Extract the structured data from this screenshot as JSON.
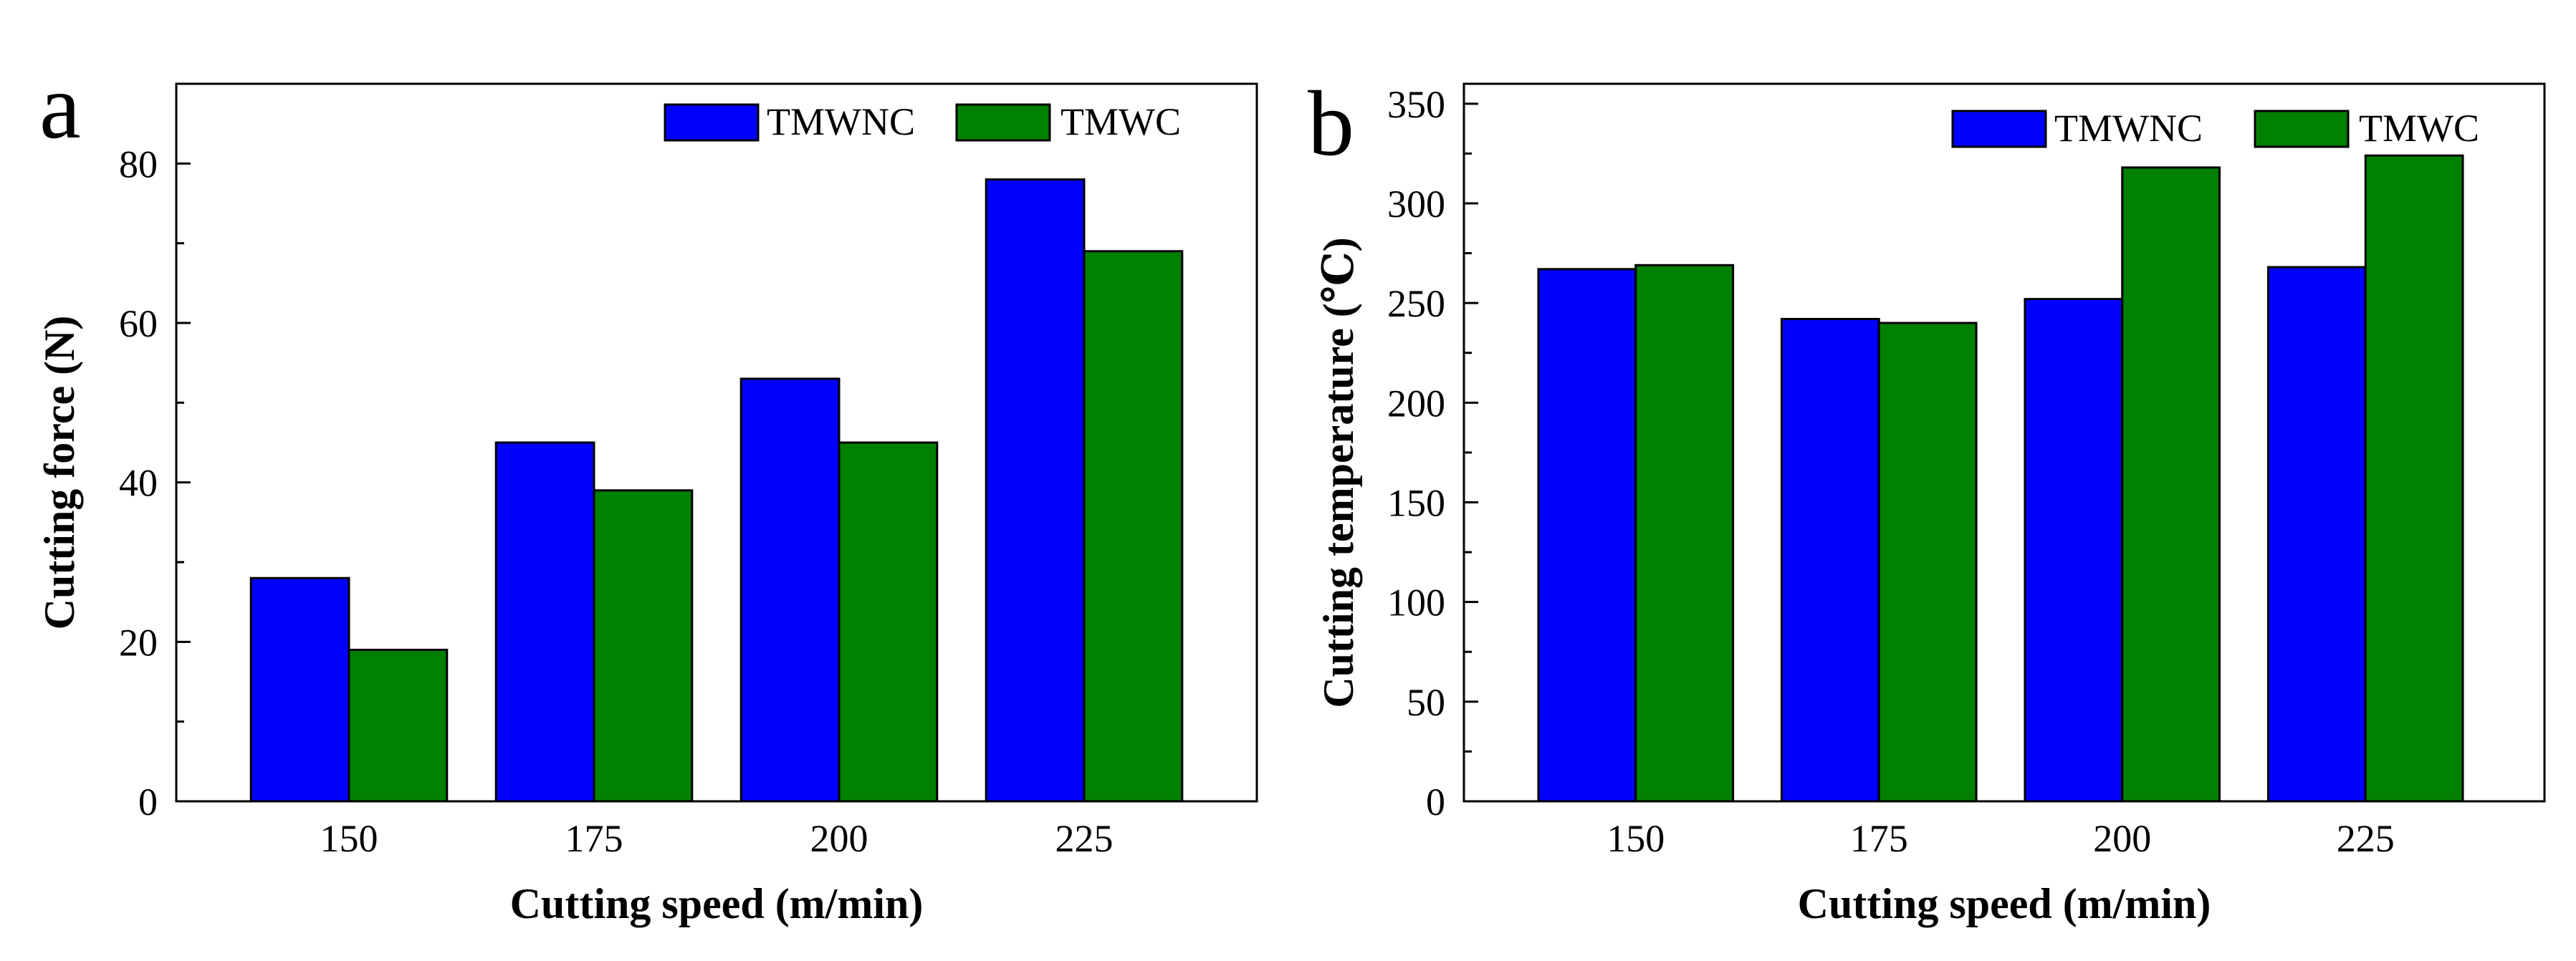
{
  "colors": {
    "series_a": "#0000ff",
    "series_b": "#008000",
    "axis": "#000000"
  },
  "chart_data": [
    {
      "type": "bar",
      "panel_label": "a",
      "categories": [
        "150",
        "175",
        "200",
        "225"
      ],
      "series": [
        {
          "name": "TMWNC",
          "values": [
            28,
            45,
            53,
            78
          ]
        },
        {
          "name": "TMWC",
          "values": [
            19,
            39,
            45,
            69
          ]
        }
      ],
      "xlabel": "Cutting speed  (m/min)",
      "ylabel": "Cutting force (N)",
      "ylim": [
        0,
        90
      ],
      "yticks": [
        "0",
        "20",
        "40",
        "60",
        "80"
      ],
      "legend_position": "top-right",
      "grid": false
    },
    {
      "type": "bar",
      "panel_label": "b",
      "categories": [
        "150",
        "175",
        "200",
        "225"
      ],
      "series": [
        {
          "name": "TMWNC",
          "values": [
            267,
            242,
            252,
            268
          ]
        },
        {
          "name": "TMWC",
          "values": [
            269,
            240,
            318,
            324
          ]
        }
      ],
      "xlabel": "Cutting speed (m/min)",
      "ylabel": "Cutting temperature (℃)",
      "ylim": [
        0,
        360
      ],
      "yticks": [
        "0",
        "50",
        "100",
        "150",
        "200",
        "250",
        "300",
        "350"
      ],
      "legend_position": "top-right",
      "grid": false
    }
  ]
}
